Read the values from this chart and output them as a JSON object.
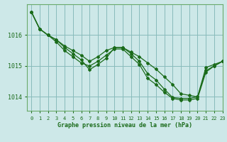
{
  "title": "Graphe pression niveau de la mer (hPa)",
  "background_color": "#cde8e8",
  "grid_color": "#88bbbb",
  "line_color": "#1a6b1a",
  "spine_color": "#6aaa6a",
  "xlim": [
    -0.5,
    23
  ],
  "ylim": [
    1013.55,
    1017.0
  ],
  "xticks": [
    0,
    1,
    2,
    3,
    4,
    5,
    6,
    7,
    8,
    9,
    10,
    11,
    12,
    13,
    14,
    15,
    16,
    17,
    18,
    19,
    20,
    21,
    22,
    23
  ],
  "yticks": [
    1014,
    1015,
    1016
  ],
  "series": [
    [
      1016.75,
      1016.2,
      1016.0,
      1015.85,
      1015.65,
      1015.5,
      1015.35,
      1015.15,
      1015.3,
      1015.5,
      1015.6,
      1015.6,
      1015.45,
      1015.3,
      1015.1,
      1014.9,
      1014.65,
      1014.4,
      1014.1,
      1014.05,
      1014.0,
      1014.95,
      1015.05,
      1015.15
    ],
    [
      1016.75,
      1016.2,
      1016.0,
      1015.85,
      1015.6,
      1015.4,
      1015.2,
      1014.88,
      1015.05,
      1015.25,
      1015.6,
      1015.6,
      1015.4,
      1015.15,
      1014.75,
      1014.55,
      1014.25,
      1013.98,
      1013.95,
      1013.95,
      1014.0,
      1014.85,
      1015.0,
      1015.15
    ],
    [
      1016.75,
      1016.2,
      1016.0,
      1015.78,
      1015.5,
      1015.3,
      1015.1,
      1015.0,
      1015.15,
      1015.35,
      1015.55,
      1015.55,
      1015.3,
      1015.05,
      1014.6,
      1014.4,
      1014.15,
      1013.95,
      1013.9,
      1013.9,
      1013.95,
      1014.8,
      1015.0,
      1015.15
    ]
  ]
}
